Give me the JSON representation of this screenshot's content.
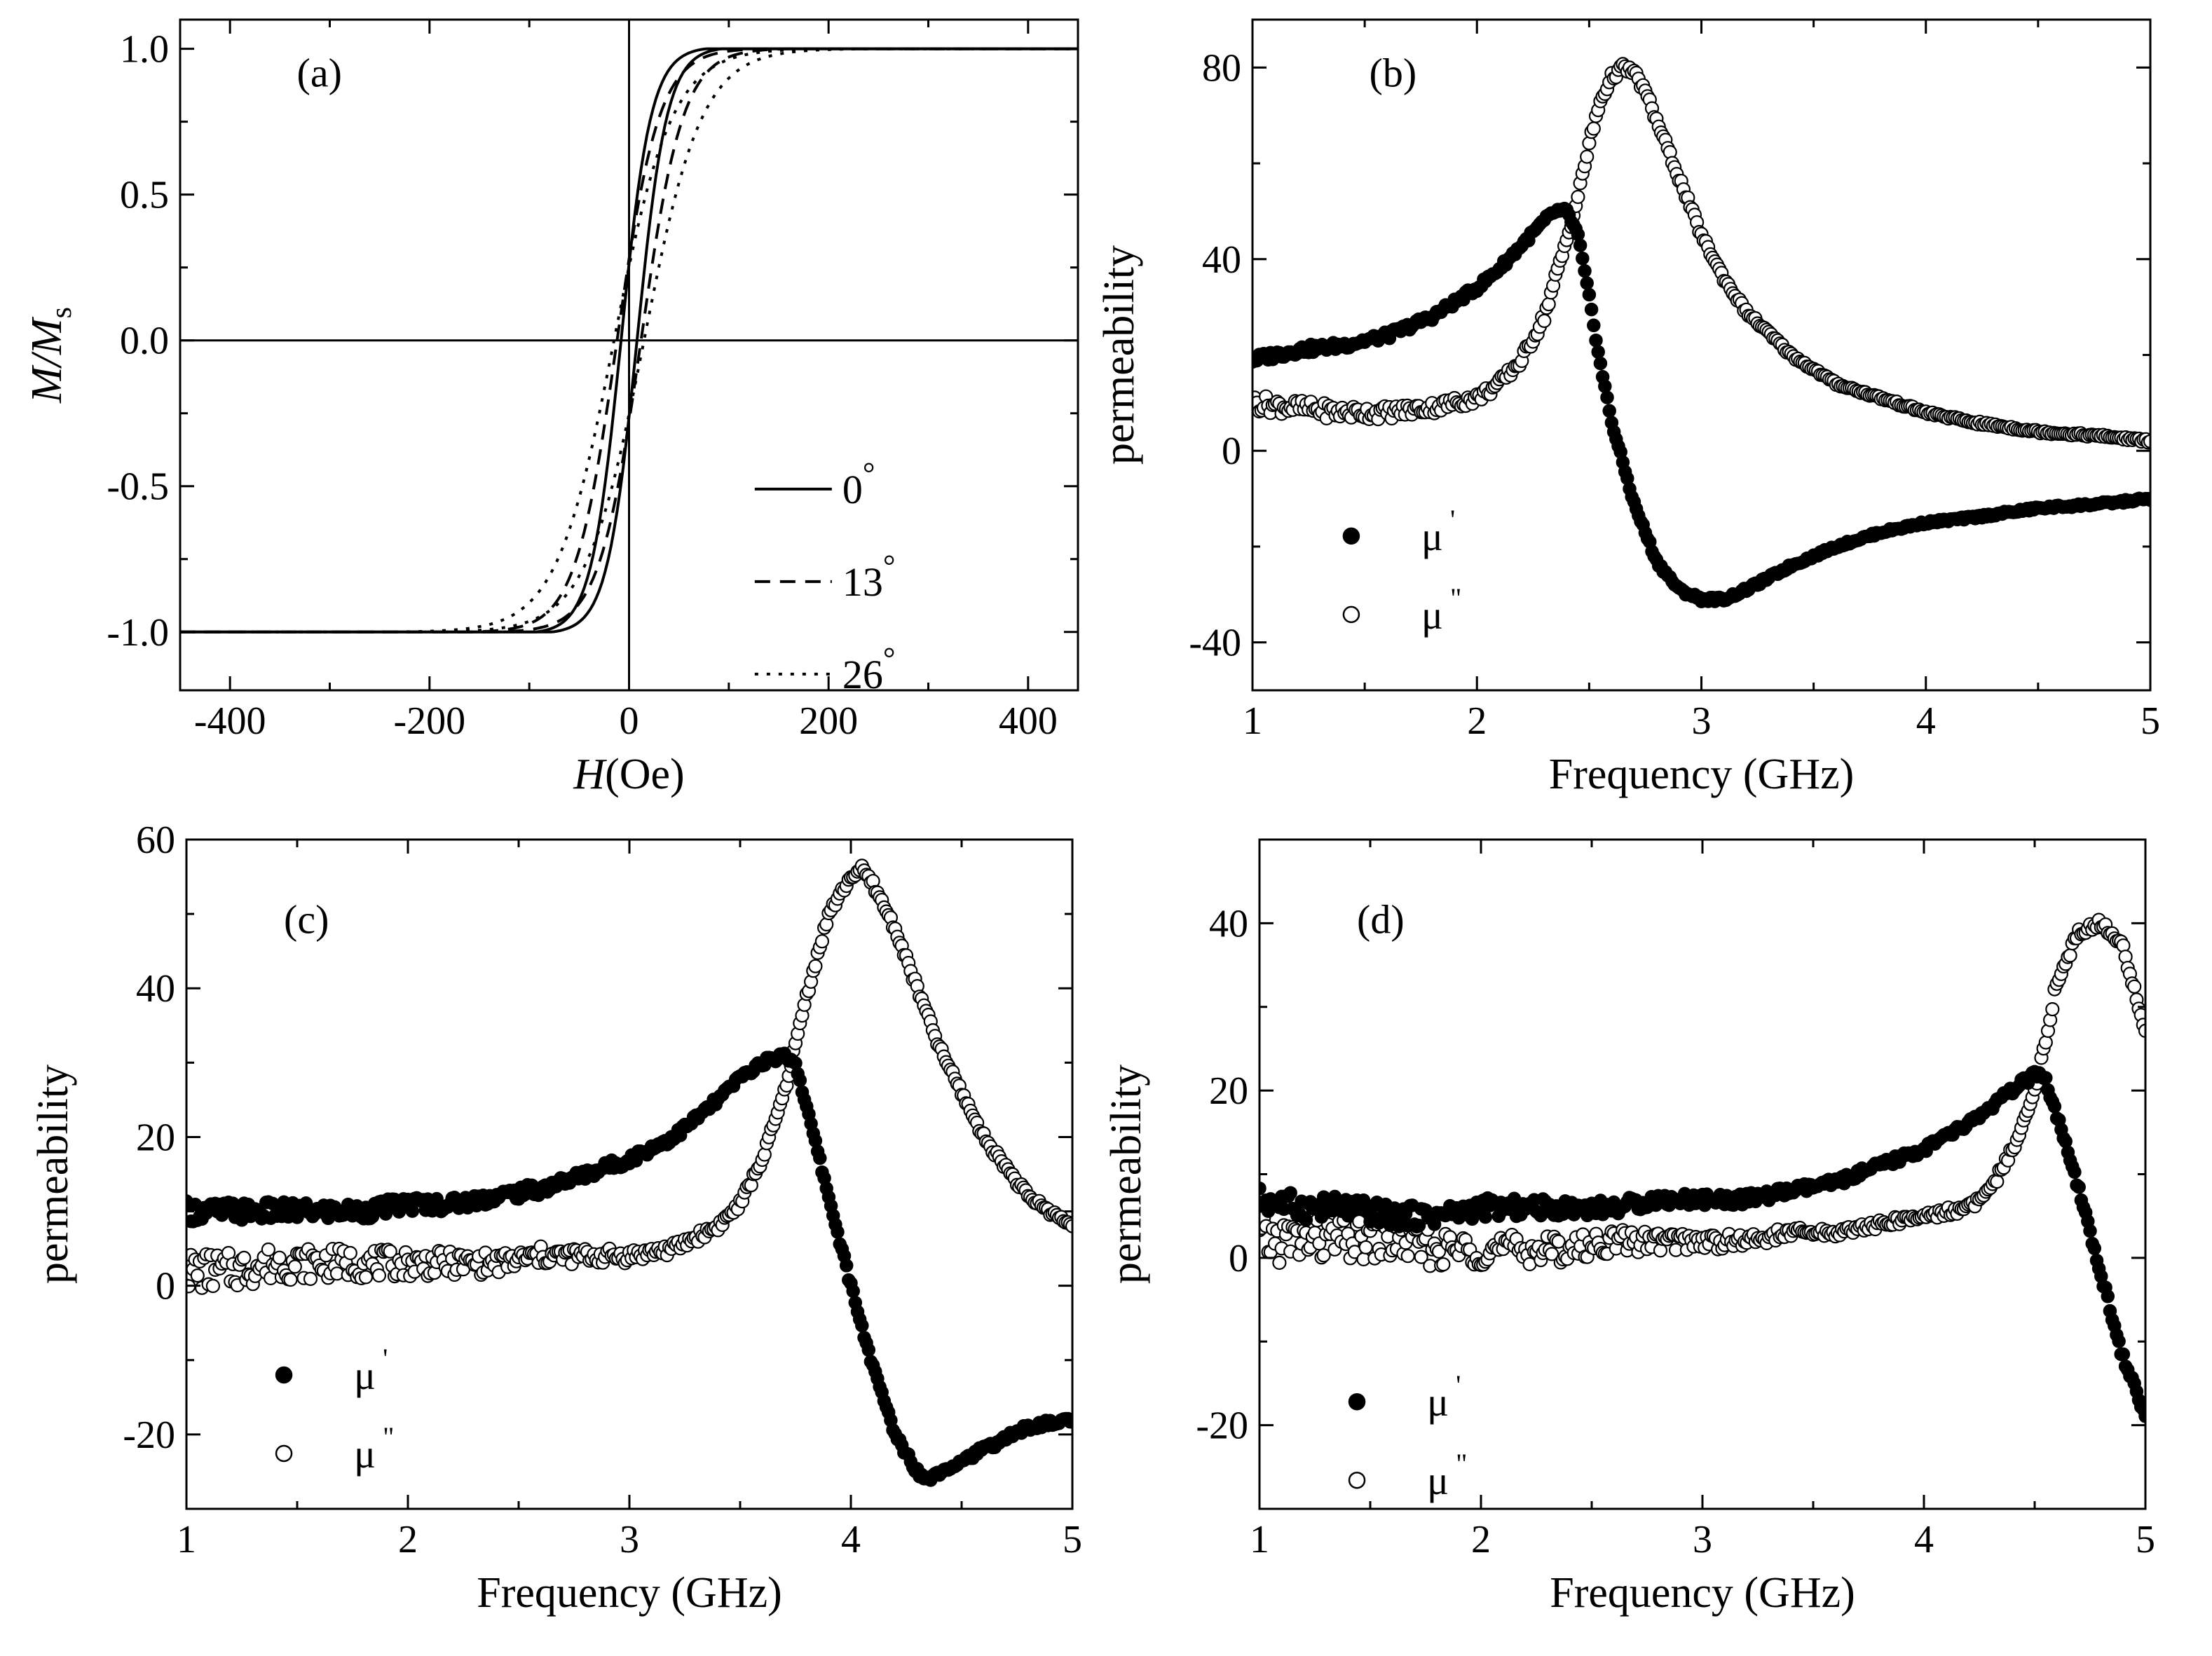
{
  "chart_data": [
    {
      "panel": "(a)",
      "type": "line",
      "xlabel": {
        "italic": "H",
        "rest": "(Oe)"
      },
      "ylabel": {
        "italic": "M/M",
        "sub": "s"
      },
      "xlim": [
        -450,
        450
      ],
      "ylim": [
        -1.2,
        1.1
      ],
      "x_ticks": [
        -400,
        -200,
        0,
        200,
        400
      ],
      "x_tick_labels": [
        "-400",
        "-200",
        "0",
        "200",
        "400"
      ],
      "y_ticks": [
        -1.0,
        -0.5,
        0.0,
        0.5,
        1.0
      ],
      "y_tick_labels": [
        "-1.0",
        "-0.5",
        "0.0",
        "0.5",
        "1.0"
      ],
      "grid": false,
      "reference_lines": {
        "x": 0,
        "y": 0
      },
      "legend_position": "bottom-right",
      "series": [
        {
          "name": "0°",
          "label_value": "0",
          "style": "solid",
          "approach_field": 85,
          "coercive_field": 8,
          "width": 30
        },
        {
          "name": "13°",
          "label_value": "13",
          "style": "dashed",
          "approach_field": 150,
          "coercive_field": 12,
          "width": 42
        },
        {
          "name": "26°",
          "label_value": "26",
          "style": "dotted",
          "approach_field": 230,
          "coercive_field": 15,
          "width": 58
        }
      ]
    },
    {
      "panel": "(b)",
      "type": "scatter",
      "xlabel": "Frequency (GHz)",
      "ylabel": "permeability",
      "xlim": [
        1,
        5
      ],
      "ylim": [
        -50,
        90
      ],
      "x_ticks": [
        1,
        2,
        3,
        4,
        5
      ],
      "x_tick_labels": [
        "1",
        "2",
        "3",
        "4",
        "5"
      ],
      "y_ticks": [
        -40,
        0,
        40,
        80
      ],
      "y_tick_labels": [
        "-40",
        "0",
        "40",
        "80"
      ],
      "grid": false,
      "legend_position": "bottom-left",
      "resonance_frequency": 2.65,
      "peak_mu_imaginary": 80,
      "mu_real_max": 51,
      "mu_real_min": -32,
      "series": [
        {
          "name": "μ'",
          "label_base": "μ",
          "label_prime": "'",
          "marker": "filled-circle",
          "x": [
            1.0,
            1.2,
            1.4,
            1.6,
            1.8,
            2.0,
            2.1,
            2.2,
            2.3,
            2.35,
            2.4,
            2.45,
            2.5,
            2.55,
            2.6,
            2.7,
            2.8,
            2.9,
            3.0,
            3.1,
            3.2,
            3.4,
            3.6,
            3.8,
            4.0,
            4.2,
            4.5,
            4.8,
            5.0
          ],
          "y": [
            19,
            21,
            22,
            24,
            28,
            34,
            38,
            43,
            48,
            50,
            50,
            45,
            32,
            18,
            6,
            -11,
            -23,
            -29,
            -31,
            -31,
            -29,
            -24,
            -20,
            -17,
            -15,
            -14,
            -12,
            -11,
            -10
          ]
        },
        {
          "name": "μ\"",
          "label_base": "μ",
          "label_prime": "\"",
          "marker": "open-circle",
          "x": [
            1.0,
            1.2,
            1.4,
            1.6,
            1.8,
            2.0,
            2.1,
            2.2,
            2.3,
            2.4,
            2.45,
            2.5,
            2.55,
            2.6,
            2.65,
            2.7,
            2.75,
            2.8,
            2.9,
            3.0,
            3.1,
            3.2,
            3.4,
            3.6,
            3.8,
            4.0,
            4.2,
            4.5,
            4.8,
            5.0
          ],
          "y": [
            10,
            9,
            8,
            8,
            9,
            11,
            14,
            19,
            28,
            44,
            53,
            64,
            73,
            78,
            80,
            79,
            75,
            69,
            57,
            45,
            36,
            29,
            20,
            14,
            11,
            8,
            6,
            4,
            3,
            2
          ]
        }
      ]
    },
    {
      "panel": "(c)",
      "type": "scatter",
      "xlabel": "Frequency (GHz)",
      "ylabel": "permeability",
      "xlim": [
        1,
        5
      ],
      "ylim": [
        -30,
        60
      ],
      "x_ticks": [
        1,
        2,
        3,
        4,
        5
      ],
      "x_tick_labels": [
        "1",
        "2",
        "3",
        "4",
        "5"
      ],
      "y_ticks": [
        -20,
        0,
        20,
        40,
        60
      ],
      "y_tick_labels": [
        "-20",
        "0",
        "20",
        "40",
        "60"
      ],
      "grid": false,
      "legend_position": "bottom-left",
      "resonance_frequency": 4.0,
      "peak_mu_imaginary": 56,
      "mu_real_max": 31,
      "mu_real_min": -26,
      "series": [
        {
          "name": "μ'",
          "label_base": "μ",
          "label_prime": "'",
          "marker": "filled-circle",
          "x": [
            1.0,
            1.2,
            1.4,
            1.6,
            1.8,
            2.0,
            2.2,
            2.4,
            2.6,
            2.8,
            3.0,
            3.2,
            3.4,
            3.5,
            3.6,
            3.7,
            3.75,
            3.8,
            3.9,
            4.0,
            4.1,
            4.2,
            4.3,
            4.35,
            4.4,
            4.6,
            4.8,
            5.0
          ],
          "y": [
            10,
            10,
            10,
            10,
            10,
            11,
            11,
            12,
            13,
            15,
            17,
            20,
            25,
            28,
            30,
            31,
            30,
            24,
            12,
            0,
            -11,
            -20,
            -25,
            -26,
            -25,
            -22,
            -19,
            -18
          ]
        },
        {
          "name": "μ\"",
          "label_base": "μ",
          "label_prime": "\"",
          "marker": "open-circle",
          "x": [
            1.0,
            1.2,
            1.4,
            1.6,
            1.8,
            2.0,
            2.2,
            2.4,
            2.6,
            2.8,
            3.0,
            3.2,
            3.4,
            3.5,
            3.6,
            3.7,
            3.8,
            3.9,
            4.0,
            4.05,
            4.1,
            4.2,
            4.3,
            4.4,
            4.6,
            4.8,
            5.0
          ],
          "y": [
            2,
            2,
            3,
            3,
            3,
            3,
            3,
            3,
            4,
            4,
            4,
            5,
            8,
            11,
            17,
            26,
            39,
            50,
            55,
            56,
            54,
            48,
            40,
            32,
            20,
            12,
            8
          ]
        }
      ]
    },
    {
      "panel": "(d)",
      "type": "scatter",
      "xlabel": "Frequency (GHz)",
      "ylabel": "permeability",
      "xlim": [
        1,
        5
      ],
      "ylim": [
        -30,
        50
      ],
      "x_ticks": [
        1,
        2,
        3,
        4,
        5
      ],
      "x_tick_labels": [
        "1",
        "2",
        "3",
        "4",
        "5"
      ],
      "y_ticks": [
        -20,
        0,
        20,
        40
      ],
      "y_tick_labels": [
        "-20",
        "0",
        "20",
        "40"
      ],
      "grid": false,
      "legend_position": "bottom-left",
      "resonance_frequency": 4.8,
      "peak_mu_imaginary": 40,
      "mu_real_max": 22,
      "mu_real_min": -19,
      "series": [
        {
          "name": "μ'",
          "label_base": "μ",
          "label_prime": "'",
          "marker": "filled-circle",
          "x": [
            1.0,
            1.2,
            1.4,
            1.6,
            1.8,
            2.0,
            2.2,
            2.4,
            2.6,
            2.8,
            3.0,
            3.2,
            3.4,
            3.6,
            3.8,
            4.0,
            4.2,
            4.4,
            4.5,
            4.55,
            4.6,
            4.7,
            4.8,
            4.9,
            5.0
          ],
          "y": [
            7,
            6,
            6,
            5,
            5,
            6,
            6,
            6,
            6,
            7,
            7,
            7,
            8,
            9,
            11,
            13,
            16,
            20,
            22,
            21,
            17,
            8,
            -2,
            -12,
            -19
          ]
        },
        {
          "name": "μ\"",
          "label_base": "μ",
          "label_prime": "\"",
          "marker": "open-circle",
          "x": [
            1.0,
            1.2,
            1.4,
            1.6,
            1.8,
            2.0,
            2.2,
            2.4,
            2.6,
            2.8,
            3.0,
            3.2,
            3.4,
            3.6,
            3.8,
            4.0,
            4.2,
            4.3,
            4.4,
            4.5,
            4.55,
            4.6,
            4.7,
            4.8,
            4.9,
            5.0
          ],
          "y": [
            2,
            2,
            2,
            2,
            1,
            1,
            1,
            1,
            2,
            2,
            2,
            2,
            3,
            3,
            4,
            5,
            6,
            8,
            13,
            20,
            26,
            33,
            39,
            40,
            37,
            27
          ]
        }
      ]
    }
  ]
}
